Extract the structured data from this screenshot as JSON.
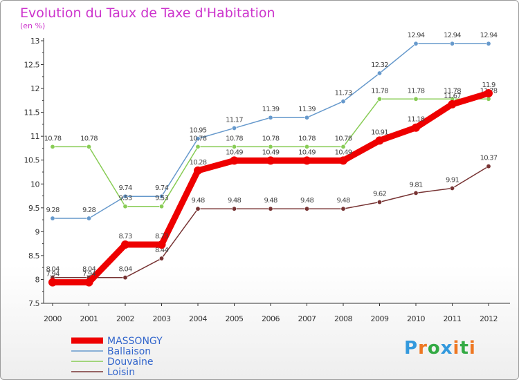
{
  "chart_data": {
    "type": "line",
    "title": "Evolution du Taux de Taxe d'Habitation",
    "subtitle": "(en %)",
    "x": [
      "2000",
      "2001",
      "2002",
      "2003",
      "2004",
      "2005",
      "2006",
      "2007",
      "2008",
      "2009",
      "2010",
      "2011",
      "2012"
    ],
    "ylim": [
      7.5,
      13
    ],
    "yticks": [
      "7.5",
      "8",
      "8.5",
      "9",
      "9.5",
      "10",
      "10.5",
      "11",
      "11.5",
      "12",
      "12.5",
      "13"
    ],
    "grid": false,
    "legend_position": "bottom-left",
    "series": [
      {
        "name": "MASSONGY",
        "color": "#ee0000",
        "values": [
          7.94,
          7.94,
          8.73,
          8.73,
          10.28,
          10.49,
          10.49,
          10.49,
          10.49,
          10.91,
          11.18,
          11.67,
          11.9
        ],
        "labels": [
          "7.94",
          "7.94",
          "8.73",
          "8.73",
          "10.28",
          "10.49",
          "10.49",
          "10.49",
          "10.49",
          "10.91",
          "11.18",
          "11.67",
          "11.9"
        ]
      },
      {
        "name": "Ballaison",
        "color": "#6699cc",
        "values": [
          9.28,
          9.28,
          9.74,
          9.74,
          10.95,
          11.17,
          11.39,
          11.39,
          11.73,
          12.32,
          12.94,
          12.94,
          12.94
        ],
        "labels": [
          "9.28",
          "9.28",
          "9.74",
          "9.74",
          "10.95",
          "11.17",
          "11.39",
          "11.39",
          "11.73",
          "12.32",
          "12.94",
          "12.94",
          "12.94"
        ]
      },
      {
        "name": "Douvaine",
        "color": "#88cc55",
        "values": [
          10.78,
          10.78,
          9.53,
          9.53,
          10.78,
          10.78,
          10.78,
          10.78,
          10.78,
          11.78,
          11.78,
          11.78,
          11.78
        ],
        "labels": [
          "10.78",
          "10.78",
          "9.53",
          "9.53",
          "10.78",
          "10.78",
          "10.78",
          "10.78",
          "10.78",
          "11.78",
          "11.78",
          "11.78",
          "11.78"
        ]
      },
      {
        "name": "Loisin",
        "color": "#773333",
        "values": [
          8.04,
          8.04,
          8.04,
          8.44,
          9.48,
          9.48,
          9.48,
          9.48,
          9.48,
          9.62,
          9.81,
          9.91,
          10.37
        ],
        "labels": [
          "8.04",
          "8.04",
          "8.04",
          "8.44",
          "9.48",
          "9.48",
          "9.48",
          "9.48",
          "9.48",
          "9.62",
          "9.81",
          "9.91",
          "10.37"
        ]
      }
    ]
  },
  "colors": {
    "title": "#cc33cc",
    "axis": "#333333",
    "legend_text": "#3366cc"
  },
  "logo": {
    "letters": [
      {
        "ch": "P",
        "color": "#3399dd"
      },
      {
        "ch": "r",
        "color": "#ee7722"
      },
      {
        "ch": "o",
        "color": "#33aa44"
      },
      {
        "ch": "x",
        "color": "#3399dd"
      },
      {
        "ch": "i",
        "color": "#ee7722"
      },
      {
        "ch": "t",
        "color": "#33aa44"
      },
      {
        "ch": "i",
        "color": "#ee7722"
      }
    ]
  }
}
